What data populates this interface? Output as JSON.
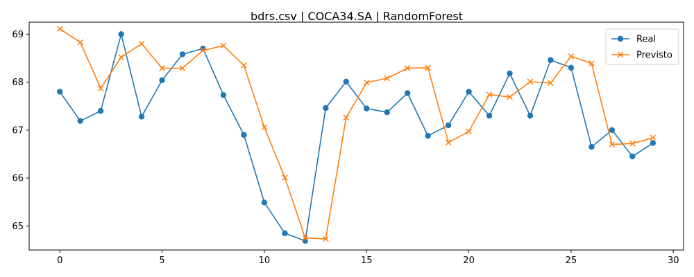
{
  "chart_data": {
    "type": "line",
    "title": "bdrs.csv | COCA34.SA | RandomForest",
    "xlabel": "",
    "ylabel": "",
    "xlim": [
      -1.5,
      30.5
    ],
    "ylim": [
      64.5,
      69.25
    ],
    "xticks": [
      0,
      5,
      10,
      15,
      20,
      25,
      30
    ],
    "yticks": [
      65,
      66,
      67,
      68,
      69
    ],
    "legend_position": "top-right",
    "x": [
      0,
      1,
      2,
      3,
      4,
      5,
      6,
      7,
      8,
      9,
      10,
      11,
      12,
      13,
      14,
      15,
      16,
      17,
      18,
      19,
      20,
      21,
      22,
      23,
      24,
      25,
      26,
      27,
      28,
      29
    ],
    "series": [
      {
        "name": "Real",
        "color": "#1f77b4",
        "marker": "circle",
        "values": [
          67.8,
          67.19,
          67.4,
          69.0,
          67.28,
          68.04,
          68.58,
          68.7,
          67.73,
          66.9,
          65.49,
          64.85,
          64.69,
          67.46,
          68.01,
          67.45,
          67.37,
          67.77,
          66.88,
          67.1,
          67.8,
          67.3,
          68.18,
          67.3,
          68.46,
          68.3,
          66.65,
          67.0,
          66.45,
          66.73
        ]
      },
      {
        "name": "Previsto",
        "color": "#ff7f0e",
        "marker": "x",
        "values": [
          69.11,
          68.83,
          67.87,
          68.52,
          68.8,
          68.29,
          68.29,
          68.66,
          68.76,
          68.35,
          67.06,
          66.01,
          64.75,
          64.73,
          67.26,
          67.99,
          68.08,
          68.29,
          68.3,
          66.74,
          66.97,
          67.74,
          67.69,
          68.01,
          67.98,
          68.54,
          68.39,
          66.7,
          66.72,
          66.84
        ]
      }
    ]
  }
}
